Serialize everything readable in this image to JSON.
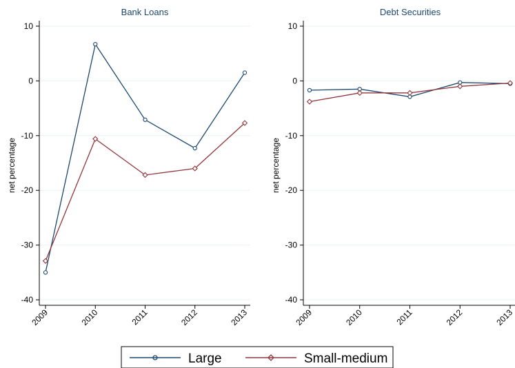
{
  "chart_data": [
    {
      "type": "line",
      "title": "Bank Loans",
      "xlabel": "",
      "ylabel": "net percentage",
      "categories": [
        "2009",
        "2010",
        "2011",
        "2012",
        "2013"
      ],
      "ylim": [
        -41,
        11
      ],
      "yticks": [
        10,
        0,
        -10,
        -20,
        -30,
        -40
      ],
      "ytick_labels": [
        "10",
        "0",
        "-10",
        "-20",
        "-30",
        "-40"
      ],
      "grid": true,
      "series": [
        {
          "name": "Large",
          "values": [
            -35,
            6.7,
            -7.1,
            -12.3,
            1.5
          ],
          "color": "#1a476f",
          "marker": "circle"
        },
        {
          "name": "Small-medium",
          "values": [
            -32.9,
            -10.6,
            -17.2,
            -16.0,
            -7.7
          ],
          "color": "#90353b",
          "marker": "diamond"
        }
      ]
    },
    {
      "type": "line",
      "title": "Debt Securities",
      "xlabel": "",
      "ylabel": "net percentage",
      "categories": [
        "2009",
        "2010",
        "2011",
        "2012",
        "2013"
      ],
      "ylim": [
        -41,
        11
      ],
      "yticks": [
        10,
        0,
        -10,
        -20,
        -30,
        -40
      ],
      "ytick_labels": [
        "10",
        "0",
        "-10",
        "-20",
        "-30",
        "-40"
      ],
      "grid": true,
      "series": [
        {
          "name": "Large",
          "values": [
            -1.7,
            -1.5,
            -2.9,
            -0.3,
            -0.5
          ],
          "color": "#1a476f",
          "marker": "circle"
        },
        {
          "name": "Small-medium",
          "values": [
            -3.8,
            -2.2,
            -2.2,
            -1.0,
            -0.4
          ],
          "color": "#90353b",
          "marker": "diamond"
        }
      ]
    }
  ],
  "legend": {
    "position": "bottom-center",
    "items": [
      {
        "label": "Large",
        "color": "#1a476f",
        "marker": "circle"
      },
      {
        "label": "Small-medium",
        "color": "#90353b",
        "marker": "diamond"
      }
    ]
  }
}
